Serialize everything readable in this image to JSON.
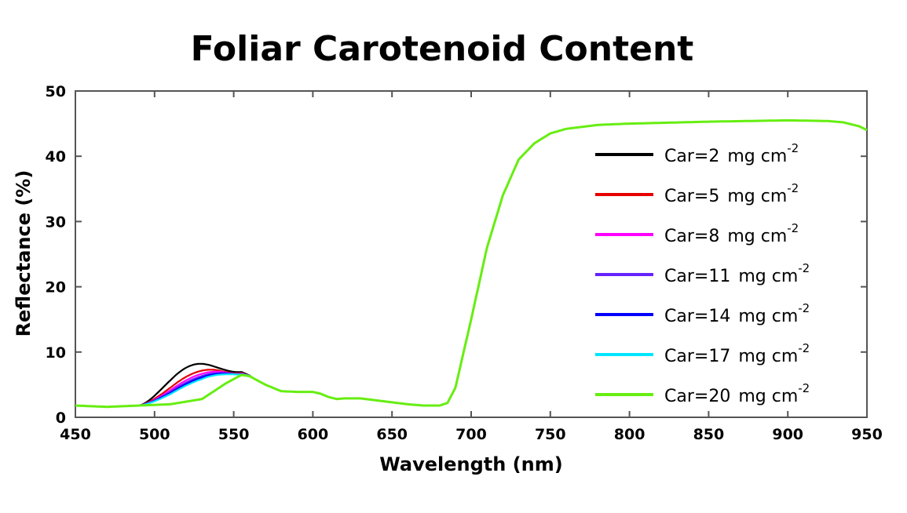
{
  "chart_data": {
    "type": "line",
    "title": "Foliar Carotenoid Content",
    "xlabel": "Wavelength (nm)",
    "ylabel": "Reflectance (%)",
    "xlim": [
      450,
      950
    ],
    "ylim": [
      0,
      50
    ],
    "xticks": [
      "450",
      "500",
      "550",
      "600",
      "650",
      "700",
      "750",
      "800",
      "850",
      "900",
      "950"
    ],
    "yticks": [
      "0",
      "10",
      "20",
      "30",
      "40",
      "50"
    ],
    "grid": false,
    "legend_position": "right",
    "base_curve": {
      "x": [
        450,
        470,
        490,
        510,
        530,
        545,
        555,
        560,
        570,
        580,
        590,
        600,
        605,
        610,
        615,
        620,
        630,
        640,
        650,
        660,
        670,
        680,
        685,
        690,
        700,
        710,
        720,
        730,
        740,
        750,
        760,
        780,
        800,
        850,
        900,
        925,
        935,
        945,
        950
      ],
      "y": [
        1.8,
        1.6,
        1.8,
        2.0,
        2.8,
        5.2,
        6.5,
        6.3,
        5.0,
        4.0,
        3.9,
        3.9,
        3.6,
        3.1,
        2.8,
        2.9,
        2.9,
        2.6,
        2.3,
        2.0,
        1.8,
        1.8,
        2.2,
        4.5,
        15.0,
        26.0,
        34.0,
        39.5,
        42.0,
        43.5,
        44.2,
        44.8,
        45.0,
        45.3,
        45.5,
        45.4,
        45.2,
        44.6,
        44.0
      ]
    },
    "series": [
      {
        "name": "Car=2",
        "unit": "mg cm",
        "sup": "-2",
        "color": "#000000",
        "bump_peak_x": 529,
        "bump_peak_y": 8.2
      },
      {
        "name": "Car=5",
        "unit": "mg cm",
        "sup": "-2",
        "color": "#e60000",
        "bump_peak_x": 536,
        "bump_peak_y": 7.3
      },
      {
        "name": "Car=8",
        "unit": "mg cm",
        "sup": "-2",
        "color": "#ff00ff",
        "bump_peak_x": 540,
        "bump_peak_y": 7.0
      },
      {
        "name": "Car=11",
        "unit": "mg cm",
        "sup": "-2",
        "color": "#6622ff",
        "bump_peak_x": 543,
        "bump_peak_y": 6.8
      },
      {
        "name": "Car=14",
        "unit": "mg cm",
        "sup": "-2",
        "color": "#0000ff",
        "bump_peak_x": 546,
        "bump_peak_y": 6.7
      },
      {
        "name": "Car=17",
        "unit": "mg cm",
        "sup": "-2",
        "color": "#00e5ff",
        "bump_peak_x": 549,
        "bump_peak_y": 6.6
      },
      {
        "name": "Car=20",
        "unit": "mg cm",
        "sup": "-2",
        "color": "#66ee11",
        "bump_peak_x": 555,
        "bump_peak_y": 6.5
      }
    ]
  }
}
